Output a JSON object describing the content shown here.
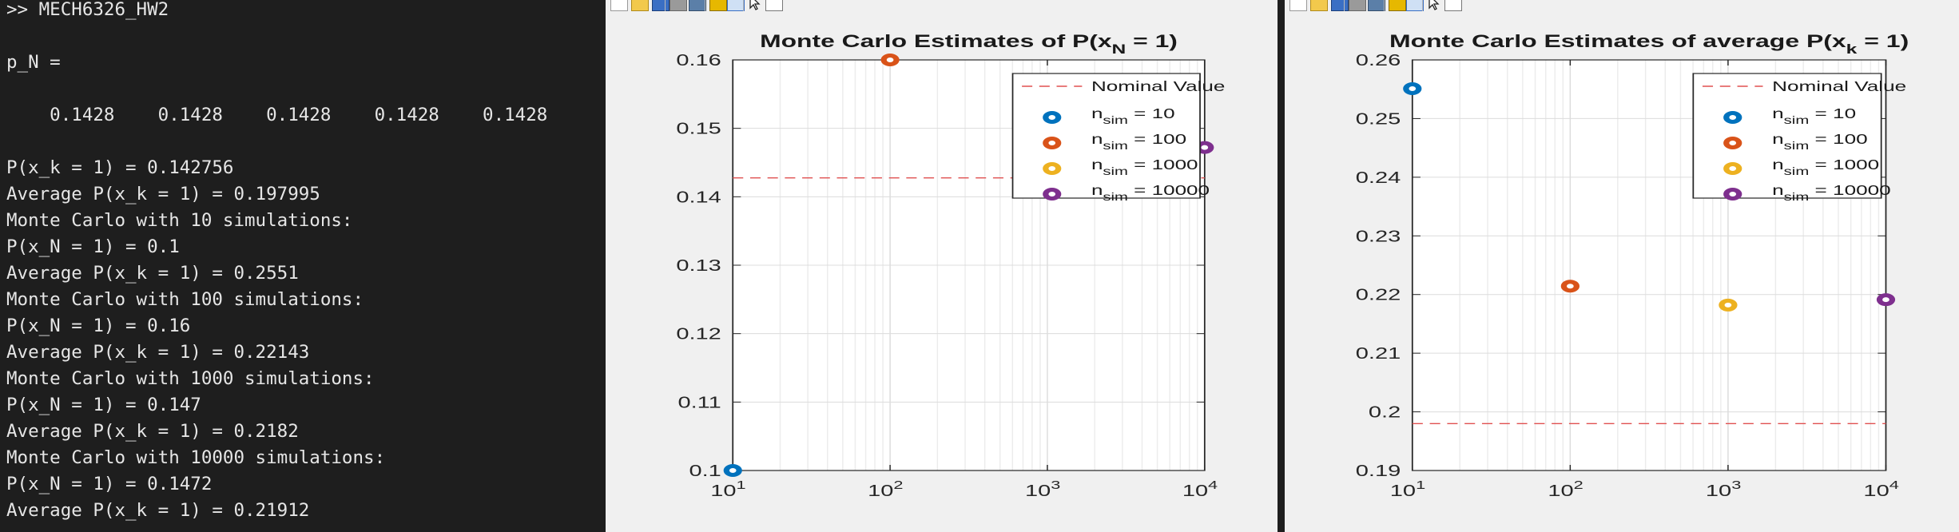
{
  "console": {
    "lines": [
      ">> MECH6326_HW2",
      "",
      "p_N =",
      "",
      "    0.1428    0.1428    0.1428    0.1428    0.1428",
      "",
      "P(x_k = 1) = 0.142756",
      "Average P(x_k = 1) = 0.197995",
      "Monte Carlo with 10 simulations:",
      "P(x_N = 1) = 0.1",
      "Average P(x_k = 1) = 0.2551",
      "Monte Carlo with 100 simulations:",
      "P(x_N = 1) = 0.16",
      "Average P(x_k = 1) = 0.22143",
      "Monte Carlo with 1000 simulations:",
      "P(x_N = 1) = 0.147",
      "Average P(x_k = 1) = 0.2182",
      "Monte Carlo with 10000 simulations:",
      "P(x_N = 1) = 0.1472",
      "Average P(x_k = 1) = 0.21912"
    ]
  },
  "toolbar_icons": [
    "new-figure-icon",
    "open-file-icon",
    "save-icon",
    "print-icon",
    "print-preview-icon",
    "colorbar-icon",
    "legend-icon",
    "pointer-icon",
    "property-editor-icon"
  ],
  "chart_data": [
    {
      "type": "scatter",
      "title": "Monte Carlo Estimates of P(x",
      "title_sub": "N",
      "title_end": " = 1)",
      "xscale": "log",
      "xlim": [
        10,
        10000
      ],
      "ylim": [
        0.1,
        0.16
      ],
      "yticks": [
        "0.1",
        "0.11",
        "0.12",
        "0.13",
        "0.14",
        "0.15",
        "0.16"
      ],
      "ytick_values": [
        0.1,
        0.11,
        0.12,
        0.13,
        0.14,
        0.15,
        0.16
      ],
      "nominal": 0.142756,
      "points": [
        {
          "x": 10,
          "y": 0.1
        },
        {
          "x": 100,
          "y": 0.16
        },
        {
          "x": 1000,
          "y": 0.147
        },
        {
          "x": 10000,
          "y": 0.1472
        }
      ],
      "grid": true,
      "legend_position": "top-right"
    },
    {
      "type": "scatter",
      "title": "Monte Carlo Estimates of average P(x",
      "title_sub": "k",
      "title_end": " = 1)",
      "xscale": "log",
      "xlim": [
        10,
        10000
      ],
      "ylim": [
        0.19,
        0.26
      ],
      "yticks": [
        "0.19",
        "0.2",
        "0.21",
        "0.22",
        "0.23",
        "0.24",
        "0.25",
        "0.26"
      ],
      "ytick_values": [
        0.19,
        0.2,
        0.21,
        0.22,
        0.23,
        0.24,
        0.25,
        0.26
      ],
      "nominal": 0.197995,
      "points": [
        {
          "x": 10,
          "y": 0.2551
        },
        {
          "x": 100,
          "y": 0.22143
        },
        {
          "x": 1000,
          "y": 0.2182
        },
        {
          "x": 10000,
          "y": 0.21912
        }
      ],
      "grid": true,
      "legend_position": "top-right"
    }
  ],
  "xtick_base": "10",
  "xtick_exps": [
    "1",
    "2",
    "3",
    "4"
  ],
  "legend": {
    "nominal_label": "Nominal Value",
    "n_main": "n",
    "n_sub": "sim",
    "entries": [
      "= 10",
      "= 100",
      "= 1000",
      "= 10000"
    ]
  },
  "series_colors": [
    "#0072BD",
    "#D95319",
    "#EDB120",
    "#7E2F8E"
  ],
  "nominal_color": "#e05050"
}
